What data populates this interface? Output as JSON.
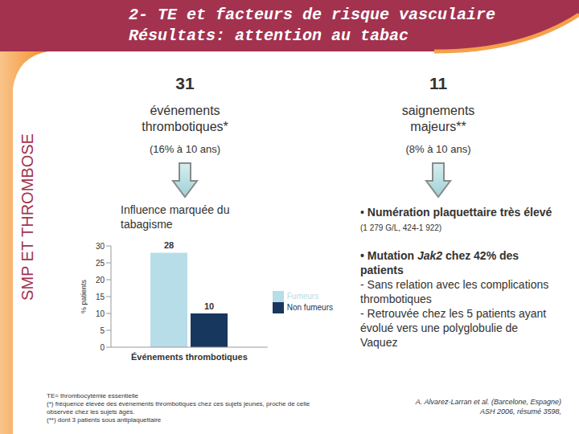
{
  "header": {
    "title_lines": [
      "2- TE et facteurs de risque vasculaire",
      "Résultats: attention au tabac"
    ]
  },
  "side_label": "SMP ET THROMBOSE",
  "left": {
    "count": "31",
    "heading": "événements thrombotiques*",
    "sub": "(16% à 10 ans)",
    "finding": "Influence marquée du tabagisme"
  },
  "right": {
    "count": "11",
    "heading": "saignements majeurs**",
    "sub": "(8% à 10 ans)",
    "bullets": [
      {
        "bullet": "•",
        "bold": "Numération plaquettaire très élevé",
        "detail": "(1 279 G/L, 424-1 922)"
      },
      {
        "bullet": "•",
        "prefix": "Mutation ",
        "italic": "Jak2",
        "suffix": " chez 42% des patients",
        "sub_items": [
          "- Sans relation avec les complications thrombotiques",
          "- Retrouvée chez les 5 patients ayant évolué vers une polyglobulie de Vaquez"
        ]
      }
    ]
  },
  "footnotes": [
    "TE= thrombocytémie essentielle",
    "(*) fréquence élevée des événements thrombotiques chez ces sujets jeunes, proche de celle observée chez les sujets âgés.",
    "(**) dont 3 patients sous antiplaquettaire"
  ],
  "citation": [
    "A. Alvarez-Larran et al. (Barcelone, Espagne)",
    "ASH 2006, résumé 3598,"
  ],
  "chart_data": {
    "type": "bar",
    "y_label": "% patients",
    "categories": [
      "Événements thrombotiques"
    ],
    "series": [
      {
        "name": "Fumeurs",
        "color": "#b7dde8",
        "values": [
          28
        ]
      },
      {
        "name": "Non fumeurs",
        "color": "#17375e",
        "values": [
          10
        ]
      }
    ],
    "ylim": [
      0,
      30
    ],
    "yticks": [
      0,
      5,
      10,
      15,
      20,
      25,
      30
    ],
    "grid": false,
    "legend": "right",
    "data_labels": true
  }
}
